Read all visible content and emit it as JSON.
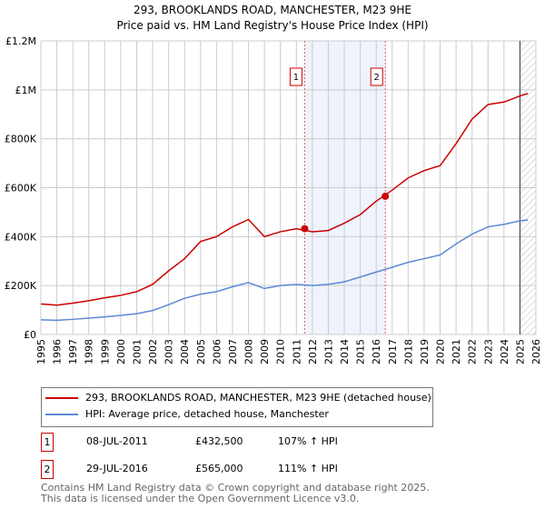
{
  "chart_data": {
    "type": "line",
    "title": "293, BROOKLANDS ROAD, MANCHESTER, M23 9HE",
    "subtitle": "Price paid vs. HM Land Registry's House Price Index (HPI)",
    "xlim": [
      1995,
      2026
    ],
    "ylim": [
      0,
      1200000
    ],
    "yticks": [
      {
        "v": 0,
        "label": "£0"
      },
      {
        "v": 200000,
        "label": "£200K"
      },
      {
        "v": 400000,
        "label": "£400K"
      },
      {
        "v": 600000,
        "label": "£600K"
      },
      {
        "v": 800000,
        "label": "£800K"
      },
      {
        "v": 1000000,
        "label": "£1M"
      },
      {
        "v": 1200000,
        "label": "£1.2M"
      }
    ],
    "xticks": [
      "1995",
      "1996",
      "1997",
      "1998",
      "1999",
      "2000",
      "2001",
      "2002",
      "2003",
      "2004",
      "2005",
      "2006",
      "2007",
      "2008",
      "2009",
      "2010",
      "2011",
      "2012",
      "2013",
      "2014",
      "2015",
      "2016",
      "2017",
      "2018",
      "2019",
      "2020",
      "2021",
      "2022",
      "2023",
      "2024",
      "2025",
      "2026"
    ],
    "x": [
      1995,
      1996,
      1997,
      1998,
      1999,
      2000,
      2001,
      2002,
      2003,
      2004,
      2005,
      2006,
      2007,
      2008,
      2009,
      2010,
      2011,
      2012,
      2013,
      2014,
      2015,
      2016,
      2017,
      2018,
      2019,
      2020,
      2021,
      2022,
      2023,
      2024,
      2025,
      2025.5
    ],
    "series": [
      {
        "name": "293, BROOKLANDS ROAD, MANCHESTER, M23 9HE (detached house)",
        "color": "#cc0000",
        "values": [
          125000,
          120000,
          128000,
          138000,
          150000,
          160000,
          175000,
          205000,
          260000,
          310000,
          380000,
          400000,
          440000,
          470000,
          400000,
          420000,
          432500,
          420000,
          425000,
          455000,
          490000,
          545000,
          590000,
          640000,
          670000,
          690000,
          780000,
          880000,
          940000,
          950000,
          975000,
          985000
        ]
      },
      {
        "name": "HPI: Average price, detached house, Manchester",
        "color": "#5b8ad4",
        "values": [
          60000,
          58000,
          62000,
          67000,
          72000,
          78000,
          85000,
          98000,
          122000,
          148000,
          165000,
          175000,
          195000,
          212000,
          188000,
          200000,
          205000,
          200000,
          205000,
          215000,
          235000,
          255000,
          275000,
          295000,
          310000,
          325000,
          370000,
          410000,
          440000,
          450000,
          465000,
          468000
        ]
      }
    ],
    "sales": [
      {
        "id": "1",
        "x": 2011.52,
        "y": 432500
      },
      {
        "id": "2",
        "x": 2016.57,
        "y": 565000
      }
    ],
    "shade": [
      2011.52,
      2016.57
    ],
    "hatch_from": 2025.0
  },
  "legend": [
    "293, BROOKLANDS ROAD, MANCHESTER, M23 9HE (detached house)",
    "HPI: Average price, detached house, Manchester"
  ],
  "table": [
    {
      "id": "1",
      "date": "08-JUL-2011",
      "price": "£432,500",
      "hpi": "107% ↑ HPI"
    },
    {
      "id": "2",
      "date": "29-JUL-2016",
      "price": "£565,000",
      "hpi": "111% ↑ HPI"
    }
  ],
  "footer": [
    "Contains HM Land Registry data © Crown copyright and database right 2025.",
    "This data is licensed under the Open Government Licence v3.0."
  ]
}
